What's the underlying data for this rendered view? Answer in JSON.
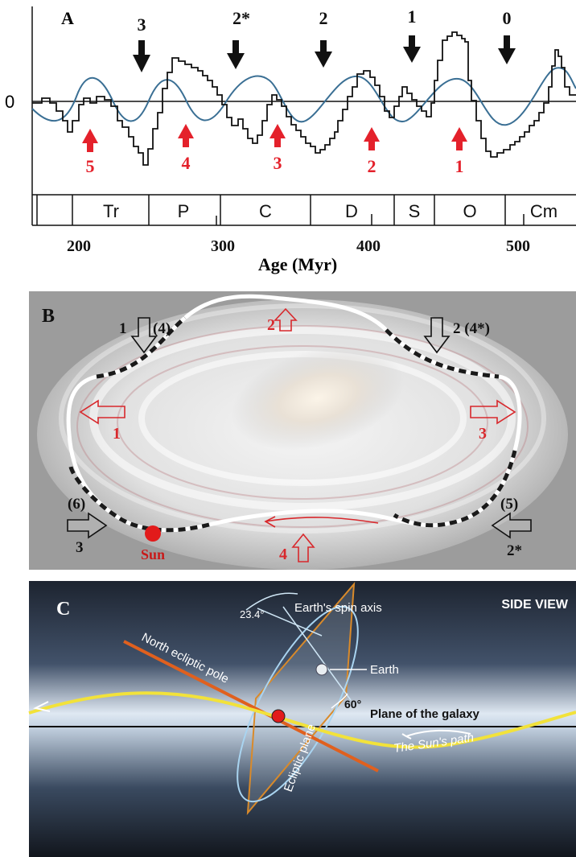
{
  "panel_a": {
    "label": "A",
    "zero_label": "0",
    "xaxis_title": "Age (Myr)",
    "ticks": [
      "200",
      "300",
      "400",
      "500"
    ],
    "periods": [
      "Tr",
      "P",
      "C",
      "D",
      "S",
      "O",
      "Cm"
    ],
    "black_arrows": [
      "3",
      "2*",
      "2",
      "1",
      "0"
    ],
    "red_arrows": [
      "5",
      "4",
      "3",
      "2",
      "1"
    ],
    "colors": {
      "step_line": "#111111",
      "sine": "#3a6f94",
      "red": "#e4212b"
    }
  },
  "panel_b": {
    "label": "B",
    "red_labels": [
      "2",
      "1",
      "3",
      "4"
    ],
    "black_labels": [
      "1",
      "(4)",
      "2 (4*)",
      "(6)",
      "3",
      "(5)",
      "2*"
    ],
    "sun_label": "Sun",
    "colors": {
      "sun": "#e21b1b",
      "path_light": "#ffffff",
      "path_dark": "#1a1a1a"
    }
  },
  "panel_c": {
    "label": "C",
    "title": "SIDE VIEW",
    "angle_spin": "23.4°",
    "spin_axis_label": "Earth's spin axis",
    "earth_label": "Earth",
    "angle_plane": "60°",
    "galaxy_plane_label": "Plane of the galaxy",
    "north_pole_label": "North ecliptic pole",
    "sun_path_label": "The Sun's path",
    "ecliptic_label": "Ecliptic plane",
    "colors": {
      "sun_path": "#f2e23a",
      "ecliptic": "#d98a2a",
      "pole": "#e0601e",
      "orbit": "#a9d4f0"
    }
  }
}
